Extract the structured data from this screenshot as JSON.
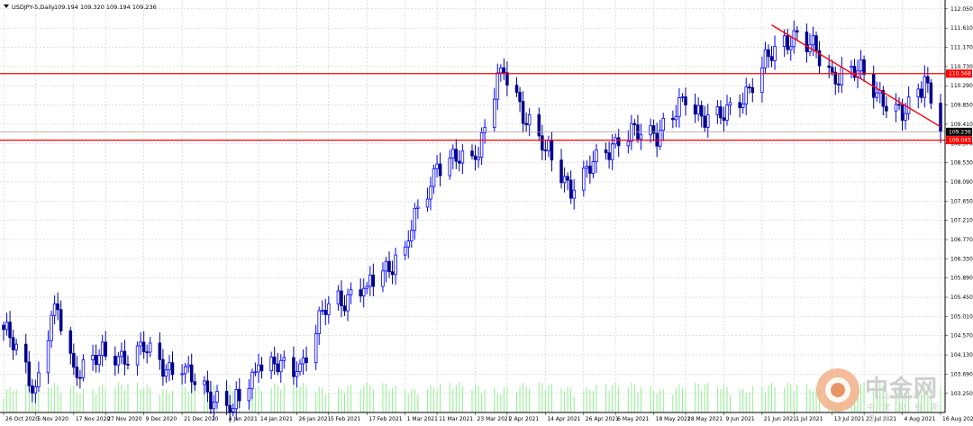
{
  "header": {
    "symbol_caption": "USDJPY-5,Daily",
    "ohlc_caption": "109.194 109.320 109.194 109.236"
  },
  "price_tags": {
    "upper_level": "110.568",
    "current": "109.236",
    "lower_level": "109.045"
  },
  "watermark": {
    "name": "中金网",
    "url": "CNGOLD.COM.CN",
    "slogan": "中 文 财 经 新 媒 体"
  },
  "colors": {
    "bull": "#0000ff",
    "bear": "#00008b",
    "volume": "#90ee90",
    "level_line": "#ff0000",
    "trend_line": "#ff0000",
    "grid": "#c0c0c0",
    "axis": "#000000",
    "current_tag": "#000000",
    "level_tag": "#ff0000"
  },
  "chart_data": {
    "type": "candlestick",
    "symbol": "USDJPY",
    "timeframe": "Daily",
    "ylim": [
      103.06,
      112.17
    ],
    "y_ticks": [
      "112.050",
      "111.610",
      "111.170",
      "110.730",
      "110.290",
      "109.850",
      "109.410",
      "108.970",
      "108.530",
      "108.090",
      "107.650",
      "107.210",
      "106.770",
      "106.330",
      "105.890",
      "105.450",
      "105.010",
      "104.570",
      "104.130",
      "103.690",
      "103.250"
    ],
    "x_labels": [
      "26 Oct 2020",
      "5 Nov 2020",
      "17 Nov 2020",
      "27 Nov 2020",
      "9 Dec 2020",
      "21 Dec 2020",
      "4 Jan 2021",
      "14 Jan 2021",
      "26 Jan 2021",
      "5 Feb 2021",
      "17 Feb 2021",
      "1 Mar 2021",
      "11 Mar 2021",
      "23 Mar 2021",
      "2 Apr 2021",
      "14 Apr 2021",
      "26 Apr 2021",
      "6 May 2021",
      "18 May 2021",
      "28 May 2021",
      "9 Jun 2021",
      "21 Jun 2021",
      "1 Jul 2021",
      "13 Jul 2021",
      "23 Jul 2021",
      "4 Aug 2021",
      "16 Aug 2021"
    ],
    "last_close": 109.236,
    "horizontal_levels": [
      110.568,
      109.045
    ],
    "trendline": {
      "from": {
        "date": "24 Jun 2021",
        "price": 111.68
      },
      "to": {
        "date": "16 Aug 2021",
        "price": 109.35
      }
    },
    "key_points": [
      {
        "date": "26 Oct 2020",
        "close": 104.71
      },
      {
        "date": "5 Nov 2020",
        "close": 103.4
      },
      {
        "date": "11 Nov 2020",
        "close": 105.3
      },
      {
        "date": "17 Nov 2020",
        "close": 103.85
      },
      {
        "date": "27 Nov 2020",
        "close": 104.1
      },
      {
        "date": "9 Dec 2020",
        "close": 104.2
      },
      {
        "date": "21 Dec 2020",
        "close": 103.7
      },
      {
        "date": "6 Jan 2021",
        "close": 102.9
      },
      {
        "date": "14 Jan 2021",
        "close": 103.9
      },
      {
        "date": "26 Jan 2021",
        "close": 103.75
      },
      {
        "date": "5 Feb 2021",
        "close": 105.3
      },
      {
        "date": "17 Feb 2021",
        "close": 105.7
      },
      {
        "date": "1 Mar 2021",
        "close": 106.6
      },
      {
        "date": "11 Mar 2021",
        "close": 108.5
      },
      {
        "date": "23 Mar 2021",
        "close": 108.6
      },
      {
        "date": "31 Mar 2021",
        "close": 110.7
      },
      {
        "date": "14 Apr 2021",
        "close": 108.8
      },
      {
        "date": "23 Apr 2021",
        "close": 107.9
      },
      {
        "date": "6 May 2021",
        "close": 109.1
      },
      {
        "date": "18 May 2021",
        "close": 109.2
      },
      {
        "date": "28 May 2021",
        "close": 109.85
      },
      {
        "date": "9 Jun 2021",
        "close": 109.5
      },
      {
        "date": "21 Jun 2021",
        "close": 110.7
      },
      {
        "date": "1 Jul 2021",
        "close": 111.55
      },
      {
        "date": "13 Jul 2021",
        "close": 110.6
      },
      {
        "date": "23 Jul 2021",
        "close": 110.55
      },
      {
        "date": "4 Aug 2021",
        "close": 109.5
      },
      {
        "date": "11 Aug 2021",
        "close": 110.5
      },
      {
        "date": "16 Aug 2021",
        "close": 109.24
      }
    ]
  }
}
